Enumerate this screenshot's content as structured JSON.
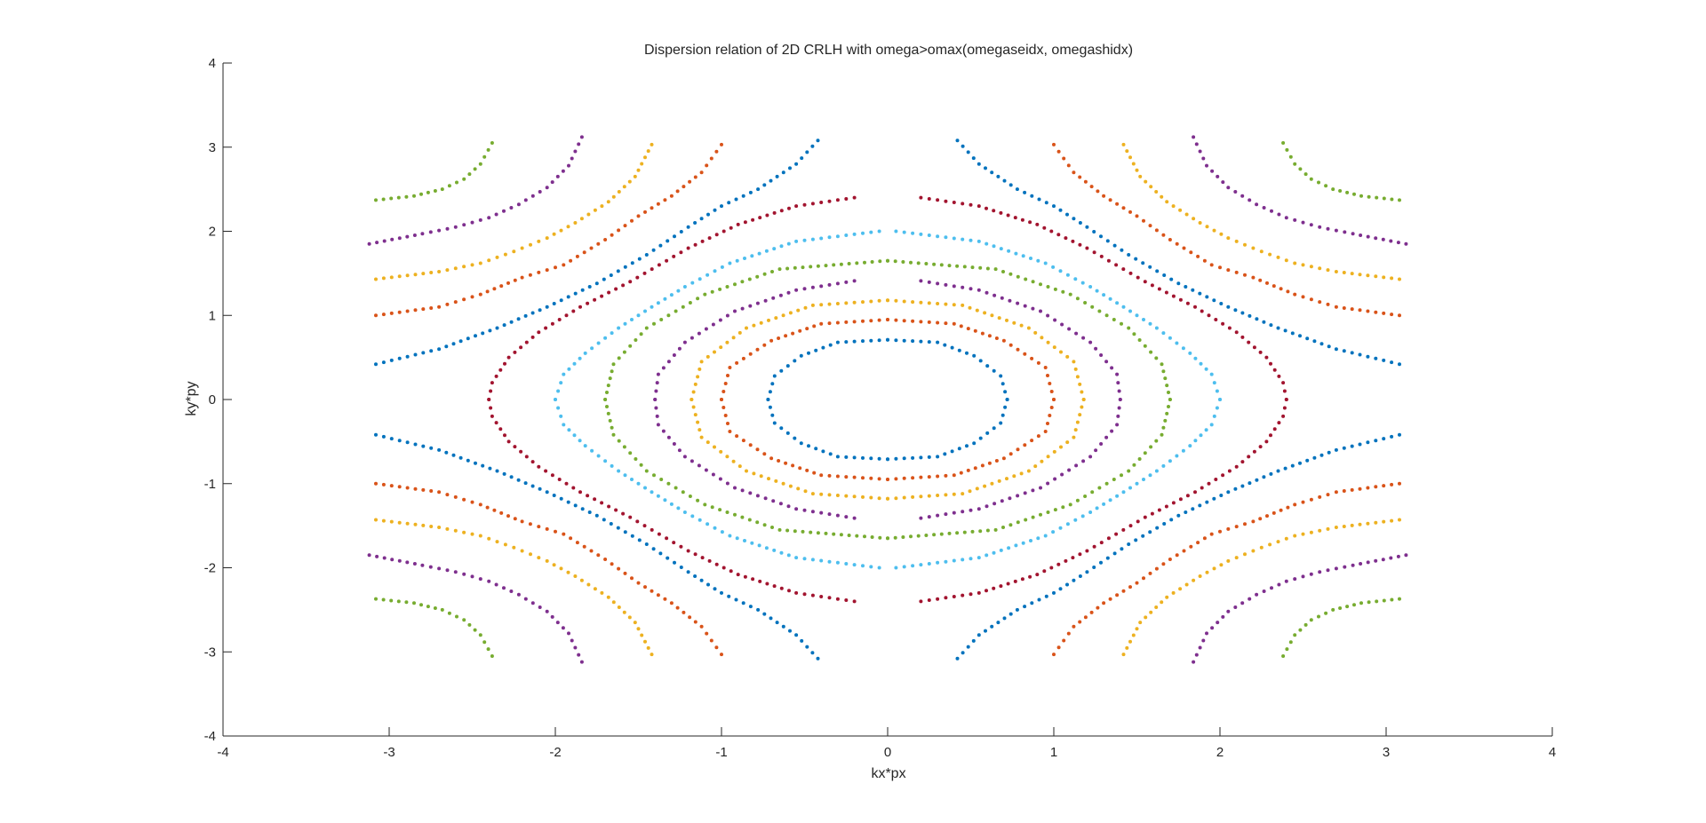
{
  "chart_data": {
    "type": "scatter",
    "title": "Dispersion relation of 2D CRLH with omega>omax(omegaseidx, omegashidx)",
    "xlabel": "kx*px",
    "ylabel": "ky*py",
    "xlim": [
      -4,
      4
    ],
    "ylim": [
      -4,
      4
    ],
    "xticks": [
      -4,
      -3,
      -2,
      -1,
      0,
      1,
      2,
      3,
      4
    ],
    "yticks": [
      -4,
      -3,
      -2,
      -1,
      0,
      1,
      2,
      3,
      4
    ],
    "xtick_labels": [
      "-4",
      "-3",
      "-2",
      "-1",
      "0",
      "1",
      "2",
      "3",
      "4"
    ],
    "ytick_labels": [
      "-4",
      "-3",
      "-2",
      "-1",
      "0",
      "1",
      "2",
      "3",
      "4"
    ],
    "grid": false,
    "legend": "none",
    "symmetry": "mirrored in kx and ky",
    "series": [
      {
        "color": "#0072BD",
        "closed": [
          [
            0,
            0.71
          ],
          [
            0.3,
            0.68
          ],
          [
            0.52,
            0.52
          ],
          [
            0.68,
            0.28
          ],
          [
            0.72,
            0
          ]
        ],
        "corner": [
          [
            0.42,
            3.08
          ],
          [
            0.55,
            2.8
          ],
          [
            0.78,
            2.5
          ],
          [
            1.0,
            2.3
          ],
          [
            1.2,
            2.05
          ],
          [
            1.45,
            1.72
          ],
          [
            1.75,
            1.38
          ],
          [
            2.05,
            1.1
          ],
          [
            2.35,
            0.85
          ],
          [
            2.7,
            0.6
          ],
          [
            3.08,
            0.42
          ]
        ]
      },
      {
        "color": "#D95319",
        "closed": [
          [
            0,
            0.95
          ],
          [
            0.4,
            0.9
          ],
          [
            0.7,
            0.7
          ],
          [
            0.95,
            0.38
          ],
          [
            1.0,
            0
          ]
        ],
        "corner": [
          [
            1.0,
            3.03
          ],
          [
            1.12,
            2.7
          ],
          [
            1.3,
            2.42
          ],
          [
            1.5,
            2.18
          ],
          [
            1.7,
            1.9
          ],
          [
            1.95,
            1.6
          ],
          [
            2.2,
            1.45
          ],
          [
            2.45,
            1.25
          ],
          [
            2.7,
            1.1
          ],
          [
            3.08,
            1.0
          ]
        ]
      },
      {
        "color": "#EDB120",
        "closed": [
          [
            0,
            1.18
          ],
          [
            0.45,
            1.12
          ],
          [
            0.85,
            0.85
          ],
          [
            1.12,
            0.45
          ],
          [
            1.18,
            0
          ]
        ],
        "corner": [
          [
            1.42,
            3.03
          ],
          [
            1.52,
            2.65
          ],
          [
            1.68,
            2.35
          ],
          [
            1.88,
            2.1
          ],
          [
            2.05,
            1.92
          ],
          [
            2.25,
            1.76
          ],
          [
            2.45,
            1.62
          ],
          [
            2.7,
            1.52
          ],
          [
            3.08,
            1.43
          ]
        ]
      },
      {
        "color": "#7E2F8E",
        "closed_inner": [
          [
            0.2,
            1.41
          ],
          [
            0.55,
            1.3
          ],
          [
            0.92,
            1.05
          ],
          [
            1.22,
            0.68
          ],
          [
            1.38,
            0.3
          ],
          [
            1.4,
            0
          ]
        ],
        "corner": [
          [
            1.84,
            3.12
          ],
          [
            1.92,
            2.78
          ],
          [
            2.05,
            2.52
          ],
          [
            2.22,
            2.32
          ],
          [
            2.4,
            2.16
          ],
          [
            2.6,
            2.05
          ],
          [
            2.8,
            1.97
          ],
          [
            3.12,
            1.85
          ]
        ]
      },
      {
        "color": "#77AC30",
        "closed": [
          [
            0,
            1.65
          ],
          [
            0.65,
            1.55
          ],
          [
            1.1,
            1.25
          ],
          [
            1.45,
            0.85
          ],
          [
            1.65,
            0.42
          ],
          [
            1.7,
            0
          ]
        ],
        "corner": [
          [
            2.38,
            3.05
          ],
          [
            2.45,
            2.8
          ],
          [
            2.55,
            2.62
          ],
          [
            2.68,
            2.5
          ],
          [
            2.85,
            2.42
          ],
          [
            3.08,
            2.37
          ]
        ]
      },
      {
        "color": "#4DBEEE",
        "closed": [
          [
            0.05,
            2.0
          ],
          [
            0.55,
            1.88
          ],
          [
            0.95,
            1.62
          ],
          [
            1.22,
            1.34
          ],
          [
            1.42,
            1.1
          ],
          [
            1.62,
            0.85
          ],
          [
            1.82,
            0.55
          ],
          [
            1.95,
            0.3
          ],
          [
            2.0,
            0
          ]
        ]
      },
      {
        "color": "#A2142F",
        "closed_outer": [
          [
            0.2,
            2.4
          ],
          [
            0.55,
            2.3
          ],
          [
            0.9,
            2.08
          ],
          [
            1.2,
            1.8
          ],
          [
            1.55,
            1.4
          ],
          [
            1.85,
            1.1
          ],
          [
            2.1,
            0.8
          ],
          [
            2.28,
            0.5
          ],
          [
            2.38,
            0.2
          ],
          [
            2.4,
            0
          ]
        ]
      }
    ]
  }
}
